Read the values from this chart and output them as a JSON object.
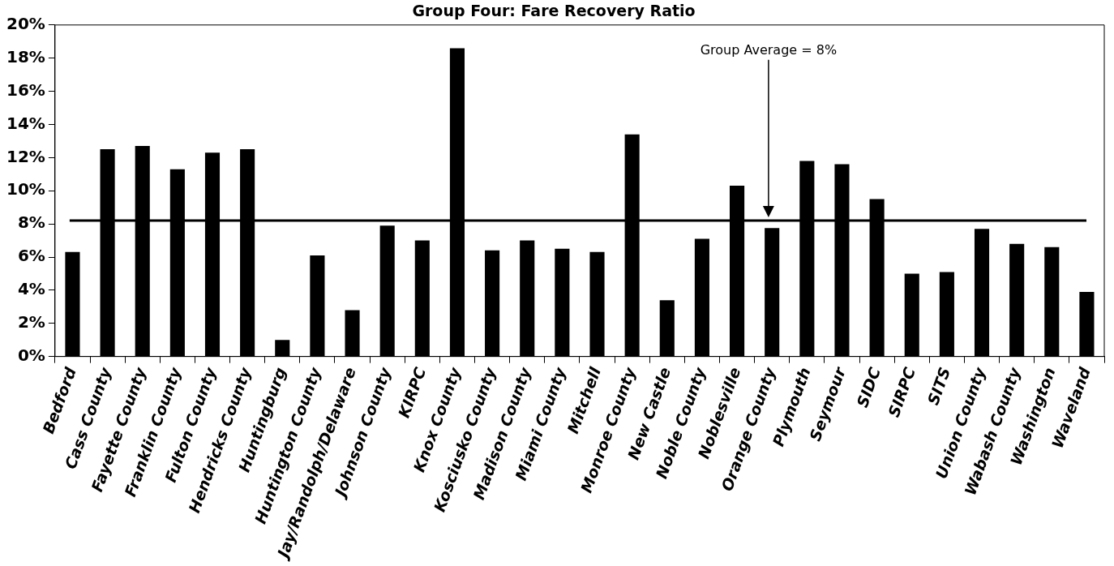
{
  "chart_data": {
    "type": "bar",
    "title": "Group Four: Fare Recovery Ratio",
    "categories": [
      "Bedford",
      "Cass County",
      "Fayette County",
      "Franklin County",
      "Fulton County",
      "Hendricks County",
      "Huntingburg",
      "Huntington County",
      "Jay/Randolph/Delaware",
      "Johnson County",
      "KIRPC",
      "Knox County",
      "Kosciusko County",
      "Madison County",
      "Miami County",
      "Mitchell",
      "Monroe County",
      "New Castle",
      "Noble County",
      "Noblesville",
      "Orange County",
      "Plymouth",
      "Seymour",
      "SIDC",
      "SIRPC",
      "SITS",
      "Union County",
      "Wabash County",
      "Washington",
      "Waveland"
    ],
    "values": [
      6.3,
      12.5,
      12.7,
      11.3,
      12.3,
      12.5,
      1.0,
      6.1,
      2.8,
      7.9,
      7.0,
      18.6,
      6.4,
      7.0,
      6.5,
      6.3,
      13.4,
      3.4,
      7.1,
      10.3,
      7.75,
      11.8,
      11.6,
      9.5,
      5.0,
      5.1,
      7.7,
      6.8,
      6.6,
      3.9
    ],
    "color": "#000000",
    "ylim": [
      0,
      20
    ],
    "yticks": [
      {
        "value": 0,
        "label": "0%"
      },
      {
        "value": 2,
        "label": "2%"
      },
      {
        "value": 4,
        "label": "4%"
      },
      {
        "value": 6,
        "label": "6%"
      },
      {
        "value": 8,
        "label": "8%"
      },
      {
        "value": 10,
        "label": "10%"
      },
      {
        "value": 12,
        "label": "12%"
      },
      {
        "value": 14,
        "label": "14%"
      },
      {
        "value": 16,
        "label": "16%"
      },
      {
        "value": 18,
        "label": "18%"
      },
      {
        "value": 20,
        "label": "20%"
      }
    ],
    "ref_lines": [
      {
        "axis": "y",
        "value": 8.2,
        "label": "Group Average = 8%",
        "color": "#000000"
      }
    ],
    "grid": false,
    "legend": false
  }
}
